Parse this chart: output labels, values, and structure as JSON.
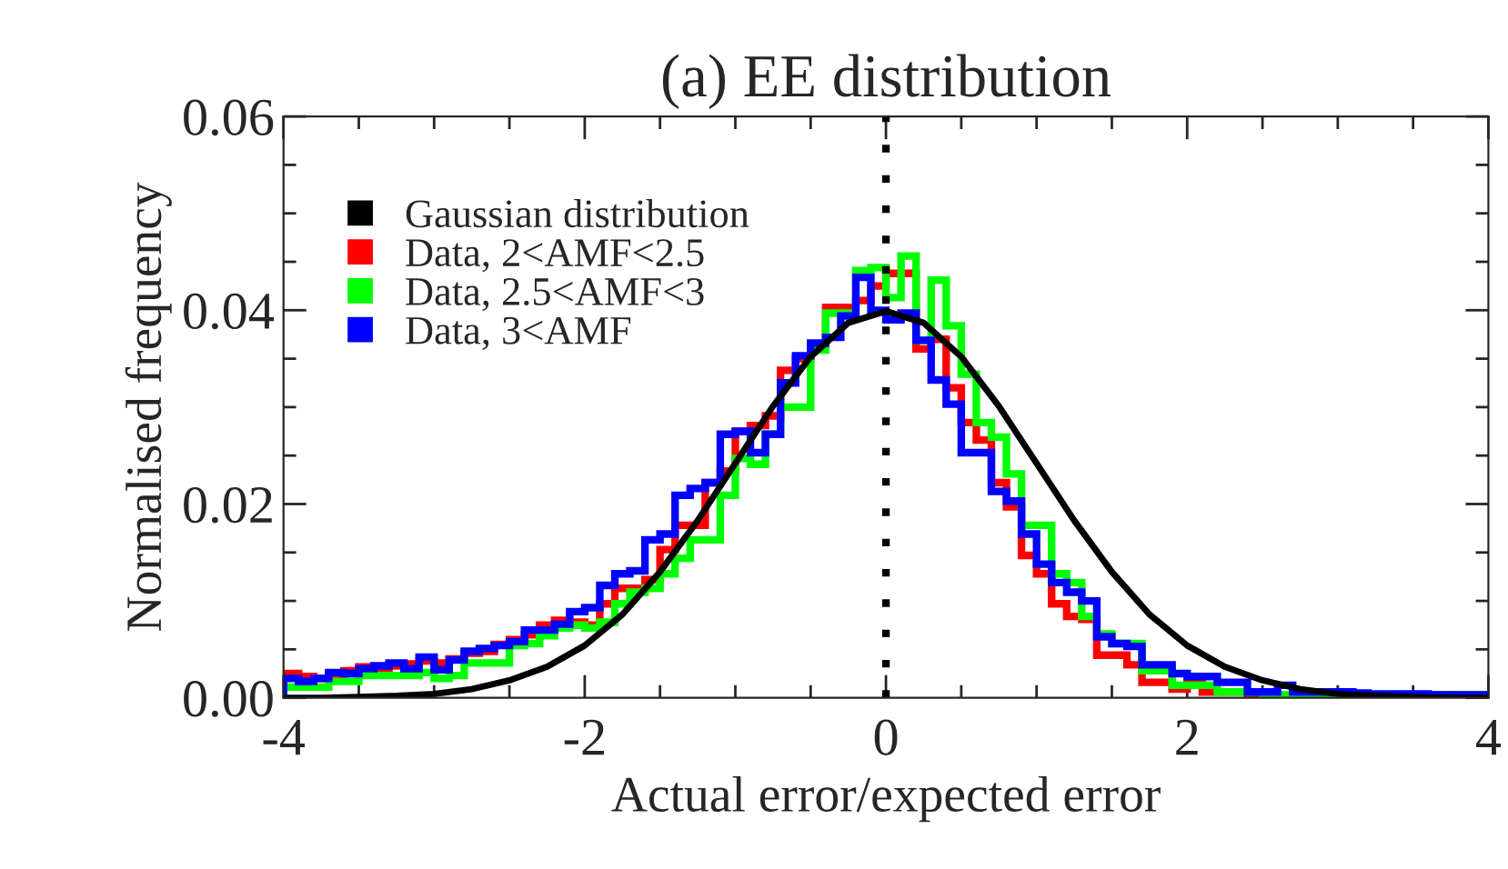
{
  "chart_data": {
    "type": "histogram",
    "title": "(a) EE distribution",
    "xlabel": "Actual error/expected error",
    "ylabel": "Normalised frequency",
    "bins": [
      -4.0,
      -3.9,
      -3.8,
      -3.7,
      -3.6,
      -3.5,
      -3.4,
      -3.3,
      -3.2,
      -3.1,
      -3.0,
      -2.9,
      -2.8,
      -2.7,
      -2.6,
      -2.5,
      -2.4,
      -2.3,
      -2.2,
      -2.1,
      -2.0,
      -1.9,
      -1.8,
      -1.7,
      -1.6,
      -1.5,
      -1.4,
      -1.3,
      -1.2,
      -1.1,
      -1.0,
      -0.9,
      -0.8,
      -0.7,
      -0.6,
      -0.5,
      -0.4,
      -0.3,
      -0.2,
      -0.1,
      0.0,
      0.1,
      0.2,
      0.3,
      0.4,
      0.5,
      0.6,
      0.7,
      0.8,
      0.9,
      1.0,
      1.1,
      1.2,
      1.3,
      1.4,
      1.5,
      1.6,
      1.7,
      1.8,
      1.9,
      2.0,
      2.1,
      2.2,
      2.3,
      2.4,
      2.5,
      2.6,
      2.7,
      2.8,
      2.9,
      3.0,
      3.1,
      3.2,
      3.3,
      3.4,
      3.5,
      3.6,
      3.7,
      3.8,
      3.9,
      4.0
    ],
    "series": [
      {
        "name": "Gaussian distribution",
        "type": "line",
        "color": "#000000",
        "x": [
          -4,
          -3.75,
          -3.5,
          -3.25,
          -3,
          -2.75,
          -2.5,
          -2.25,
          -2,
          -1.75,
          -1.5,
          -1.25,
          -1,
          -0.75,
          -0.5,
          -0.25,
          0,
          0.25,
          0.5,
          0.75,
          1,
          1.25,
          1.5,
          1.75,
          2,
          2.25,
          2.5,
          2.75,
          3,
          3.25,
          3.5,
          3.75,
          4
        ],
        "values": [
          0.0,
          0.0,
          0.0001,
          0.0002,
          0.0004,
          0.0009,
          0.0018,
          0.0032,
          0.0054,
          0.0086,
          0.013,
          0.0183,
          0.0242,
          0.0301,
          0.0352,
          0.0387,
          0.0399,
          0.0387,
          0.0352,
          0.0301,
          0.0242,
          0.0183,
          0.013,
          0.0086,
          0.0054,
          0.0032,
          0.0018,
          0.0009,
          0.0004,
          0.0002,
          0.0001,
          0.0,
          0.0
        ]
      },
      {
        "name": "Data, 2<AMF<2.5",
        "color": "#ff0000",
        "values": [
          0.0025,
          0.0022,
          0.002,
          0.0023,
          0.0028,
          0.0032,
          0.003,
          0.0033,
          0.0035,
          0.0038,
          0.0036,
          0.004,
          0.0046,
          0.0048,
          0.0055,
          0.006,
          0.0065,
          0.0075,
          0.008,
          0.0078,
          0.0075,
          0.0097,
          0.0113,
          0.0113,
          0.0122,
          0.0153,
          0.0178,
          0.0178,
          0.0222,
          0.0234,
          0.0275,
          0.0281,
          0.0291,
          0.0338,
          0.035,
          0.0363,
          0.0403,
          0.0403,
          0.041,
          0.0425,
          0.0438,
          0.0438,
          0.036,
          0.037,
          0.032,
          0.0284,
          0.0266,
          0.0222,
          0.0197,
          0.0147,
          0.0128,
          0.0097,
          0.0084,
          0.0081,
          0.0044,
          0.0044,
          0.0034,
          0.0016,
          0.0016,
          0.0009,
          0.0015,
          0.0006,
          0.0006,
          0.0006,
          0.0,
          0.0,
          0.0,
          0.0003,
          0.0003,
          0.0003,
          0.0003,
          0.0003,
          0.0003,
          0.0003,
          0.0003,
          0.0003,
          0.0003,
          0.0003,
          0.0003,
          0.0003
        ]
      },
      {
        "name": "Data, 2.5<AMF<3",
        "color": "#00ff00",
        "values": [
          0.0011,
          0.0011,
          0.0011,
          0.0017,
          0.0017,
          0.0023,
          0.0023,
          0.0023,
          0.0023,
          0.0026,
          0.002,
          0.0023,
          0.0036,
          0.0036,
          0.0036,
          0.0054,
          0.0056,
          0.0064,
          0.0072,
          0.0075,
          0.0072,
          0.0078,
          0.0097,
          0.0109,
          0.0113,
          0.0128,
          0.0144,
          0.0163,
          0.0163,
          0.0209,
          0.0247,
          0.0241,
          0.0272,
          0.03,
          0.03,
          0.0359,
          0.0397,
          0.0397,
          0.0441,
          0.0444,
          0.0413,
          0.0456,
          0.0369,
          0.0431,
          0.0384,
          0.0334,
          0.0284,
          0.0269,
          0.0231,
          0.0178,
          0.0178,
          0.0128,
          0.0119,
          0.0084,
          0.0066,
          0.0056,
          0.0056,
          0.0028,
          0.0028,
          0.0013,
          0.0013,
          0.0013,
          0.0006,
          0.0006,
          0.0006,
          0.0003,
          0.0003,
          0.0003,
          0.0003,
          0.0003,
          0.0003,
          0.0003,
          0.0003,
          0.0003,
          0.0003,
          0.0003,
          0.0003,
          0.0003,
          0.0003,
          0.0003
        ]
      },
      {
        "name": "Data, 3<AMF",
        "color": "#0000ff",
        "values": [
          0.002,
          0.0017,
          0.002,
          0.0026,
          0.0025,
          0.003,
          0.0033,
          0.0036,
          0.003,
          0.0042,
          0.0029,
          0.0039,
          0.0048,
          0.0051,
          0.0054,
          0.0058,
          0.007,
          0.007,
          0.0076,
          0.0089,
          0.0093,
          0.0116,
          0.0128,
          0.0131,
          0.0163,
          0.0169,
          0.0209,
          0.0216,
          0.0222,
          0.0272,
          0.0275,
          0.0253,
          0.0272,
          0.0325,
          0.0353,
          0.0366,
          0.0372,
          0.0394,
          0.0434,
          0.04,
          0.039,
          0.0397,
          0.0369,
          0.0328,
          0.0303,
          0.0253,
          0.0253,
          0.0213,
          0.0203,
          0.0169,
          0.0138,
          0.0119,
          0.0109,
          0.01,
          0.0063,
          0.0056,
          0.0053,
          0.0034,
          0.0034,
          0.0025,
          0.0022,
          0.0022,
          0.0016,
          0.0016,
          0.0006,
          0.0006,
          0.0013,
          0.0006,
          0.0006,
          0.0006,
          0.0006,
          0.0005,
          0.0004,
          0.0004,
          0.0004,
          0.0004,
          0.0003,
          0.0003,
          0.0003,
          0.0003
        ]
      }
    ],
    "xlim": [
      -4,
      4
    ],
    "xticks": [
      -4,
      {
        "value": -3.5,
        "label": null
      },
      {
        "value": -3,
        "label": null
      },
      {
        "value": -2.5,
        "label": null
      },
      -2,
      {
        "value": -1.5,
        "label": null
      },
      {
        "value": -1,
        "label": null
      },
      {
        "value": -0.5,
        "label": null
      },
      0,
      {
        "value": 0.5,
        "label": null
      },
      {
        "value": 1,
        "label": null
      },
      {
        "value": 1.5,
        "label": null
      },
      2,
      {
        "value": 2.5,
        "label": null
      },
      {
        "value": 3,
        "label": null
      },
      {
        "value": 3.5,
        "label": null
      },
      4
    ],
    "ylim": [
      0,
      0.06
    ],
    "yticks": [
      {
        "value": 0,
        "label": "0.00"
      },
      {
        "value": 0.005,
        "label": null
      },
      {
        "value": 0.01,
        "label": null
      },
      {
        "value": 0.015,
        "label": null
      },
      {
        "value": 0.02,
        "label": "0.02"
      },
      {
        "value": 0.025,
        "label": null
      },
      {
        "value": 0.03,
        "label": null
      },
      {
        "value": 0.035,
        "label": null
      },
      {
        "value": 0.04,
        "label": "0.04"
      },
      {
        "value": 0.045,
        "label": null
      },
      {
        "value": 0.05,
        "label": null
      },
      {
        "value": 0.055,
        "label": null
      },
      {
        "value": 0.06,
        "label": "0.06"
      }
    ],
    "ref_lines": [
      {
        "axis": "x",
        "value": 0,
        "color": "#000000",
        "line_style": "dotted"
      }
    ],
    "legend": "top left",
    "grid": false
  }
}
